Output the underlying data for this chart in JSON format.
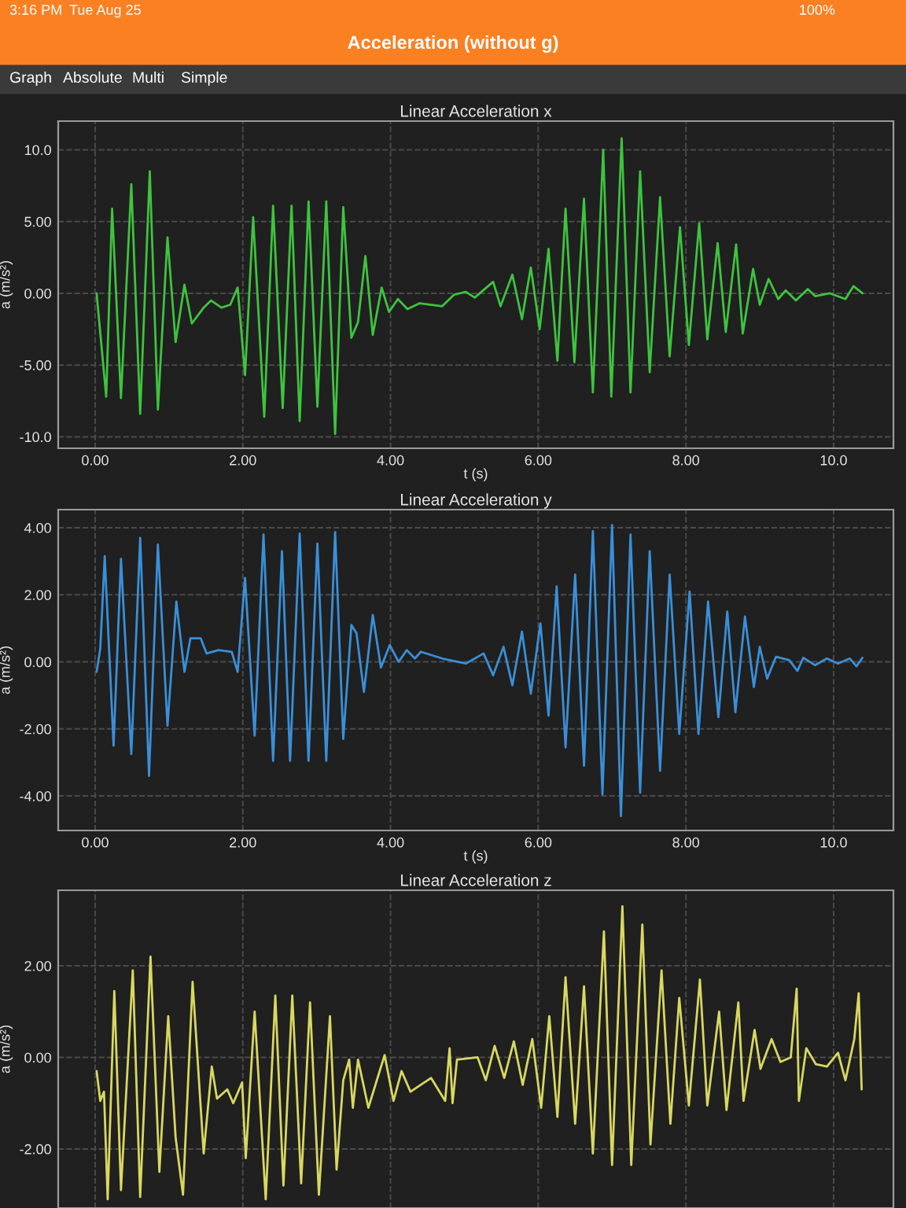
{
  "chart_data": [
    {
      "type": "line",
      "title": "Linear Acceleration x",
      "xlabel": "t (s)",
      "ylabel": "a (m/s²)",
      "annotations": [
        "3:16 PM",
        "Tue Aug 25",
        "100%",
        "Acceleration (without g)",
        "Graph",
        "Absolute",
        "Multi",
        "Simple"
      ],
      "xlim": [
        -0.5,
        10.81
      ],
      "ylim": [
        -10.8,
        12.0
      ],
      "xticks": [
        {
          "value": 0,
          "label": "0.00"
        },
        {
          "value": 2,
          "label": "2.00"
        },
        {
          "value": 4,
          "label": "4.00"
        },
        {
          "value": 6,
          "label": "6.00"
        },
        {
          "value": 8,
          "label": "8.00"
        },
        {
          "value": 10,
          "label": "10.0"
        }
      ],
      "yticks": [
        {
          "value": -10,
          "label": "-10.0"
        },
        {
          "value": -5,
          "label": "-5.00"
        },
        {
          "value": 0,
          "label": "0.00"
        },
        {
          "value": 5,
          "label": "5.00"
        },
        {
          "value": 10,
          "label": "10.0"
        }
      ],
      "grid": true,
      "series": [
        {
          "color": "#3ec43e",
          "x": [
            0.02,
            0.15,
            0.23,
            0.35,
            0.49,
            0.61,
            0.74,
            0.85,
            0.98,
            1.09,
            1.21,
            1.31,
            1.47,
            1.57,
            1.71,
            1.83,
            1.93,
            2.03,
            2.14,
            2.29,
            2.41,
            2.54,
            2.66,
            2.77,
            2.89,
            3.01,
            3.13,
            3.25,
            3.36,
            3.47,
            3.56,
            3.66,
            3.76,
            3.88,
            3.98,
            4.1,
            4.23,
            4.39,
            4.7,
            4.86,
            5.02,
            5.14,
            5.39,
            5.49,
            5.65,
            5.78,
            5.9,
            6.02,
            6.14,
            6.26,
            6.37,
            6.49,
            6.62,
            6.74,
            6.88,
            6.99,
            7.13,
            7.25,
            7.38,
            7.51,
            7.65,
            7.78,
            7.92,
            8.04,
            8.18,
            8.29,
            8.43,
            8.54,
            8.68,
            8.77,
            8.91,
            9.0,
            9.12,
            9.25,
            9.35,
            9.49,
            9.65,
            9.75,
            9.95,
            10.16,
            10.27,
            10.39
          ],
          "values": [
            0,
            -7.2,
            5.9,
            -7.3,
            7.6,
            -8.4,
            8.5,
            -8.1,
            3.9,
            -3.4,
            0.6,
            -2.1,
            -1,
            -0.5,
            -1,
            -0.8,
            0.4,
            -5.7,
            5.3,
            -8.6,
            6.1,
            -8.0,
            6.1,
            -8.9,
            6.4,
            -7.9,
            6.4,
            -9.8,
            6.0,
            -3.1,
            -2.0,
            2.6,
            -2.9,
            0.4,
            -1.3,
            -0.4,
            -1.1,
            -0.7,
            -0.9,
            -0.1,
            0.1,
            -0.3,
            0.8,
            -0.9,
            1.3,
            -1.8,
            1.8,
            -2.5,
            3.1,
            -4.7,
            5.9,
            -4.8,
            6.6,
            -6.9,
            10.0,
            -7.2,
            10.8,
            -6.9,
            8.5,
            -5.5,
            6.7,
            -4.4,
            4.6,
            -3.6,
            4.9,
            -3.2,
            3.5,
            -2.7,
            3.4,
            -2.8,
            1.7,
            -0.8,
            1.0,
            -0.4,
            0.2,
            -0.5,
            0.3,
            -0.2,
            0,
            -0.4,
            0.5,
            0
          ]
        }
      ]
    },
    {
      "type": "line",
      "title": "Linear Acceleration y",
      "xlabel": "t (s)",
      "ylabel": "a (m/s²)",
      "xlim": [
        -0.5,
        10.81
      ],
      "ylim": [
        -5.03,
        4.54
      ],
      "xticks": [
        {
          "value": 0,
          "label": "0.00"
        },
        {
          "value": 2,
          "label": "2.00"
        },
        {
          "value": 4,
          "label": "4.00"
        },
        {
          "value": 6,
          "label": "6.00"
        },
        {
          "value": 8,
          "label": "8.00"
        },
        {
          "value": 10,
          "label": "10.0"
        }
      ],
      "yticks": [
        {
          "value": -4,
          "label": "-4.00"
        },
        {
          "value": -2,
          "label": "-2.00"
        },
        {
          "value": 0,
          "label": "0.00"
        },
        {
          "value": 2,
          "label": "2.00"
        },
        {
          "value": 4,
          "label": "4.00"
        }
      ],
      "grid": true,
      "series": [
        {
          "color": "#3a8fd8",
          "x": [
            0.02,
            0.07,
            0.13,
            0.25,
            0.35,
            0.49,
            0.61,
            0.73,
            0.85,
            0.98,
            1.1,
            1.21,
            1.29,
            1.43,
            1.51,
            1.67,
            1.85,
            1.93,
            2.03,
            2.16,
            2.28,
            2.41,
            2.53,
            2.64,
            2.77,
            2.89,
            3.01,
            3.13,
            3.25,
            3.36,
            3.47,
            3.54,
            3.64,
            3.76,
            3.87,
            3.99,
            4.11,
            4.22,
            4.33,
            4.41,
            4.7,
            5.02,
            5.26,
            5.39,
            5.53,
            5.65,
            5.78,
            5.9,
            6.03,
            6.14,
            6.25,
            6.37,
            6.5,
            6.62,
            6.74,
            6.87,
            7.0,
            7.12,
            7.25,
            7.38,
            7.51,
            7.65,
            7.78,
            7.91,
            8.05,
            8.17,
            8.3,
            8.44,
            8.56,
            8.67,
            8.8,
            8.92,
            9.0,
            9.1,
            9.22,
            9.4,
            9.51,
            9.59,
            9.75,
            9.91,
            10.06,
            10.22,
            10.31,
            10.39
          ],
          "values": [
            -0.3,
            0.4,
            3.15,
            -2.5,
            3.07,
            -2.75,
            3.7,
            -3.4,
            3.5,
            -1.9,
            1.8,
            -0.3,
            0.7,
            0.7,
            0.25,
            0.35,
            0.3,
            -0.3,
            2.5,
            -2.2,
            3.8,
            -2.95,
            3.3,
            -2.95,
            3.83,
            -2.95,
            3.53,
            -2.95,
            3.87,
            -2.3,
            1.1,
            0.85,
            -0.9,
            1.4,
            -0.17,
            0.5,
            0,
            0.35,
            0.1,
            0.3,
            0.1,
            -0.05,
            0.25,
            -0.4,
            0.45,
            -0.7,
            0.9,
            -0.95,
            1.15,
            -1.6,
            2.25,
            -2.55,
            2.6,
            -3.1,
            3.9,
            -3.95,
            4.08,
            -4.6,
            3.8,
            -3.9,
            3.3,
            -3.25,
            2.6,
            -2.15,
            2.1,
            -2.15,
            1.8,
            -1.65,
            1.5,
            -1.5,
            1.35,
            -0.75,
            0.45,
            -0.5,
            0.15,
            0.05,
            -0.27,
            0.12,
            -0.1,
            0.1,
            -0.05,
            0.1,
            -0.13,
            0.12
          ]
        }
      ]
    },
    {
      "type": "line",
      "title": "Linear Acceleration z",
      "ylabel": "a (m/s²)",
      "xlim": [
        -0.5,
        10.81
      ],
      "ylim": [
        -3.29,
        3.65
      ],
      "xticks": [
        {
          "value": 0,
          "label": null
        },
        {
          "value": 2,
          "label": null
        },
        {
          "value": 4,
          "label": null
        },
        {
          "value": 6,
          "label": null
        },
        {
          "value": 8,
          "label": null
        },
        {
          "value": 10,
          "label": null
        }
      ],
      "yticks": [
        {
          "value": -2,
          "label": "-2.00"
        },
        {
          "value": 0,
          "label": "0.00"
        },
        {
          "value": 2,
          "label": "2.00"
        }
      ],
      "tick_labels": "y",
      "grid": true,
      "series": [
        {
          "color": "#d8d860",
          "x": [
            0.02,
            0.07,
            0.12,
            0.17,
            0.26,
            0.35,
            0.51,
            0.61,
            0.75,
            0.87,
            0.99,
            1.09,
            1.19,
            1.32,
            1.47,
            1.58,
            1.65,
            1.79,
            1.87,
            1.99,
            2.04,
            2.16,
            2.31,
            2.44,
            2.55,
            2.67,
            2.79,
            2.91,
            3.03,
            3.18,
            3.27,
            3.36,
            3.44,
            3.49,
            3.56,
            3.7,
            3.92,
            4.04,
            4.15,
            4.27,
            4.55,
            4.74,
            4.8,
            4.84,
            4.9,
            5.18,
            5.29,
            5.41,
            5.54,
            5.67,
            5.79,
            5.92,
            6.04,
            6.15,
            6.26,
            6.37,
            6.5,
            6.62,
            6.74,
            6.89,
            7.0,
            7.14,
            7.26,
            7.41,
            7.52,
            7.67,
            7.79,
            7.91,
            8.04,
            8.19,
            8.29,
            8.45,
            8.55,
            8.71,
            8.78,
            8.93,
            9.01,
            9.16,
            9.28,
            9.42,
            9.5,
            9.53,
            9.63,
            9.76,
            9.91,
            10.06,
            10.16,
            10.28,
            10.34,
            10.38
          ],
          "values": [
            -0.3,
            -0.95,
            -0.75,
            -3.1,
            1.45,
            -2.9,
            1.9,
            -3.05,
            2.2,
            -2.5,
            0.9,
            -1.75,
            -3.0,
            1.65,
            -2.1,
            -0.2,
            -0.9,
            -0.7,
            -1.0,
            -0.55,
            -2.2,
            1.0,
            -3.1,
            1.35,
            -2.8,
            1.35,
            -2.75,
            1.2,
            -3.0,
            0.9,
            -2.45,
            -0.5,
            -0.05,
            -1.1,
            -0.05,
            -1.1,
            0.05,
            -0.95,
            -0.3,
            -0.75,
            -0.45,
            -0.95,
            0.2,
            -1.0,
            -0.05,
            0,
            -0.5,
            0.25,
            -0.45,
            0.35,
            -0.6,
            0.4,
            -1.1,
            0.9,
            -1.3,
            1.75,
            -1.45,
            1.55,
            -2.1,
            2.75,
            -2.35,
            3.3,
            -2.35,
            2.9,
            -1.9,
            1.9,
            -1.45,
            1.3,
            -1.05,
            1.7,
            -1.05,
            1.0,
            -1.15,
            1.2,
            -0.95,
            0.6,
            -0.25,
            0.4,
            -0.1,
            0,
            1.5,
            -0.95,
            0.2,
            -0.15,
            -0.2,
            0.1,
            -0.5,
            0.4,
            1.4,
            -0.7
          ]
        }
      ]
    }
  ]
}
